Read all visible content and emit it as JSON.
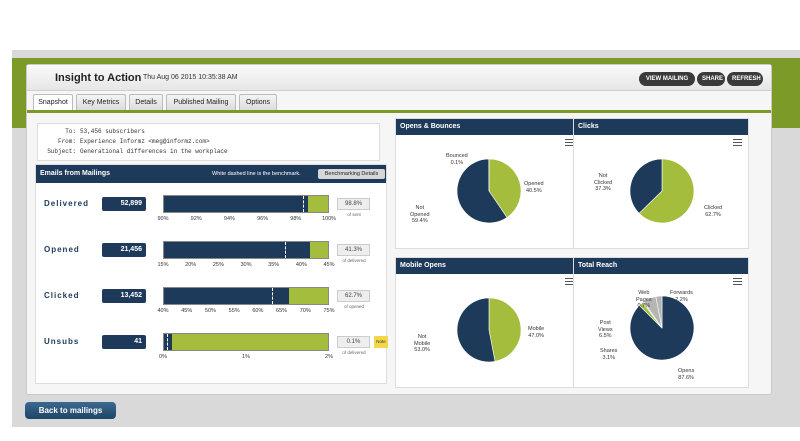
{
  "header": {
    "title": "Insight to Action",
    "date": "Thu Aug 06 2015 10:35:38 AM",
    "buttons": {
      "view_mailing": "VIEW MAILING",
      "share": "SHARE",
      "refresh": "REFRESH"
    }
  },
  "tabs": [
    {
      "label": "Snapshot"
    },
    {
      "label": "Key Metrics"
    },
    {
      "label": "Details"
    },
    {
      "label": "Published Mailing"
    },
    {
      "label": "Options"
    }
  ],
  "email": {
    "to_label": "To:",
    "to": "53,456 subscribers",
    "from_label": "From:",
    "from": "Experience Informz <meg@informz.com>",
    "subject_label": "Subject:",
    "subject": "Generational differences in the workplace"
  },
  "mailings": {
    "title": "Emails from Mailings",
    "note": "White dashed line is the benchmark.",
    "bench_button": "Benchmarking Details",
    "metrics": [
      {
        "label": "Delivered",
        "value": "52,899",
        "pct": "98.8%",
        "sub": "of sent",
        "fill": 0.88,
        "bench": 0.85,
        "ticks": [
          "90%",
          "92%",
          "94%",
          "96%",
          "98%",
          "100%"
        ]
      },
      {
        "label": "Opened",
        "value": "21,456",
        "pct": "41.3%",
        "sub": "of delivered",
        "fill": 0.89,
        "bench": 0.74,
        "ticks": [
          "15%",
          "20%",
          "25%",
          "30%",
          "35%",
          "40%",
          "45%"
        ]
      },
      {
        "label": "Clicked",
        "value": "13,452",
        "pct": "62.7%",
        "sub": "of opened",
        "fill": 0.76,
        "bench": 0.66,
        "ticks": [
          "40%",
          "45%",
          "50%",
          "55%",
          "60%",
          "65%",
          "70%",
          "75%"
        ]
      },
      {
        "label": "Unsubs",
        "value": "41",
        "pct": "0.1%",
        "sub": "of delivered",
        "fill": 0.05,
        "bench": 0.02,
        "ticks": [
          "0%",
          "1%",
          "2%"
        ],
        "note": "Note"
      }
    ]
  },
  "panels": {
    "opens_bounces": {
      "title": "Opens & Bounces",
      "labels": {
        "bounced": "Bounced",
        "bounced_pct": "0.1%",
        "opened": "Opened",
        "opened_pct": "40.5%",
        "not_opened_1": "Not",
        "not_opened_2": "Opened",
        "not_opened_pct": "59.4%"
      }
    },
    "clicks": {
      "title": "Clicks",
      "labels": {
        "not_clicked_1": "Not",
        "not_clicked_2": "Clicked",
        "not_clicked_pct": "37.3%",
        "clicked": "Clicked",
        "clicked_pct": "62.7%"
      }
    },
    "mobile_opens": {
      "title": "Mobile Opens",
      "labels": {
        "not_mobile_1": "Not",
        "not_mobile_2": "Mobile",
        "not_mobile_pct": "53.0%",
        "mobile": "Mobile",
        "mobile_pct": "47.0%"
      }
    },
    "total_reach": {
      "title": "Total Reach",
      "labels": {
        "web_1": "Web",
        "web_2": "Pages",
        "web_pct": "0.7%",
        "forwards": "Forwards",
        "forwards_pct": "2.2%",
        "post_1": "Post",
        "post_2": "Views",
        "post_pct": "6.5%",
        "shares": "Shares",
        "shares_pct": "3.1%",
        "opens": "Opens",
        "opens_pct": "87.6%"
      }
    }
  },
  "chart_data": [
    {
      "type": "pie",
      "title": "Opens & Bounces",
      "categories": [
        "Opened",
        "Not Opened",
        "Bounced"
      ],
      "values": [
        40.5,
        59.4,
        0.1
      ]
    },
    {
      "type": "pie",
      "title": "Clicks",
      "categories": [
        "Clicked",
        "Not Clicked"
      ],
      "values": [
        62.7,
        37.3
      ]
    },
    {
      "type": "pie",
      "title": "Mobile Opens",
      "categories": [
        "Mobile",
        "Not Mobile"
      ],
      "values": [
        47.0,
        53.0
      ]
    },
    {
      "type": "pie",
      "title": "Total Reach",
      "categories": [
        "Opens",
        "Forwards",
        "Web Pages",
        "Post Views",
        "Shares"
      ],
      "values": [
        87.6,
        2.2,
        0.7,
        6.5,
        3.1
      ]
    }
  ],
  "colors": {
    "navy": "#1e3a5a",
    "green": "#a4bd3c",
    "brand_green": "#7c9a28",
    "grey": "#b5b5b5"
  },
  "footer": {
    "back_button": "Back to mailings"
  }
}
